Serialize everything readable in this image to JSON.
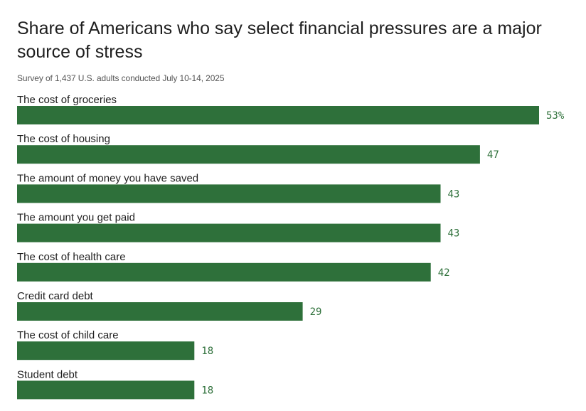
{
  "chart_data": {
    "type": "bar",
    "orientation": "horizontal",
    "title": "Share of Americans who say select financial pressures are a major source of stress",
    "subtitle": "Survey of 1,437 U.S. adults conducted July 10-14, 2025",
    "categories": [
      "The cost of groceries",
      "The cost of housing",
      "The amount of money you have saved",
      "The amount you get paid",
      "The cost of health care",
      "Credit card debt",
      "The cost of child care",
      "Student debt"
    ],
    "values": [
      53,
      47,
      43,
      43,
      42,
      29,
      18,
      18
    ],
    "value_labels": [
      "53%",
      "47",
      "43",
      "43",
      "42",
      "29",
      "18",
      "18"
    ],
    "unit": "%",
    "xlim": [
      0,
      53
    ],
    "xlabel": "",
    "ylabel": "",
    "grid": false,
    "legend": "none",
    "colors": {
      "bar": "#2e703a",
      "value_text": "#2e703a"
    }
  }
}
